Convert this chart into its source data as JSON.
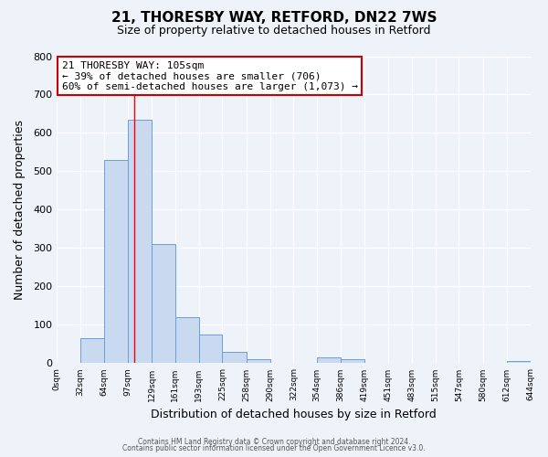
{
  "title": "21, THORESBY WAY, RETFORD, DN22 7WS",
  "subtitle": "Size of property relative to detached houses in Retford",
  "xlabel": "Distribution of detached houses by size in Retford",
  "ylabel": "Number of detached properties",
  "bin_edges": [
    0,
    32,
    64,
    97,
    129,
    161,
    193,
    225,
    258,
    290,
    322,
    354,
    386,
    419,
    451,
    483,
    515,
    547,
    580,
    612,
    644
  ],
  "bin_counts": [
    0,
    65,
    530,
    635,
    310,
    120,
    75,
    30,
    10,
    0,
    0,
    15,
    10,
    0,
    0,
    0,
    0,
    0,
    0,
    5
  ],
  "bar_facecolor": "#c9d9ef",
  "bar_edgecolor": "#6a9fd8",
  "red_line_x": 105,
  "annotation_title": "21 THORESBY WAY: 105sqm",
  "annotation_line1": "← 39% of detached houses are smaller (706)",
  "annotation_line2": "60% of semi-detached houses are larger (1,073) →",
  "annotation_box_edgecolor": "#cc0000",
  "annotation_box_facecolor": "#ffffff",
  "ylim": [
    0,
    800
  ],
  "yticks": [
    0,
    100,
    200,
    300,
    400,
    500,
    600,
    700,
    800
  ],
  "tick_labels": [
    "0sqm",
    "32sqm",
    "64sqm",
    "97sqm",
    "129sqm",
    "161sqm",
    "193sqm",
    "225sqm",
    "258sqm",
    "290sqm",
    "322sqm",
    "354sqm",
    "386sqm",
    "419sqm",
    "451sqm",
    "483sqm",
    "515sqm",
    "547sqm",
    "580sqm",
    "612sqm",
    "644sqm"
  ],
  "footer1": "Contains HM Land Registry data © Crown copyright and database right 2024.",
  "footer2": "Contains public sector information licensed under the Open Government Licence v3.0.",
  "bg_color": "#eef2f9",
  "plot_bg_color": "#eef2f9",
  "grid_color": "#ffffff",
  "title_fontsize": 11,
  "subtitle_fontsize": 9,
  "annotation_fontsize": 8
}
